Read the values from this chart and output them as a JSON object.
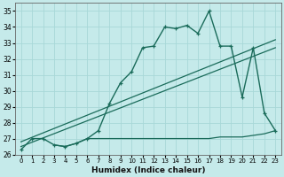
{
  "xlabel": "Humidex (Indice chaleur)",
  "bg_color": "#c5eaea",
  "grid_color": "#a8d8d8",
  "line_color": "#1a6b5a",
  "xlim": [
    -0.5,
    23.5
  ],
  "ylim": [
    26.0,
    35.5
  ],
  "yticks": [
    26,
    27,
    28,
    29,
    30,
    31,
    32,
    33,
    34,
    35
  ],
  "xticks": [
    0,
    1,
    2,
    3,
    4,
    5,
    6,
    7,
    8,
    9,
    10,
    11,
    12,
    13,
    14,
    15,
    16,
    17,
    18,
    19,
    20,
    21,
    22,
    23
  ],
  "curve_x": [
    0,
    1,
    2,
    3,
    4,
    5,
    6,
    7,
    8,
    9,
    10,
    11,
    12,
    13,
    14,
    15,
    16,
    17,
    18,
    19,
    20,
    21,
    22,
    23
  ],
  "curve_y": [
    26.3,
    27.0,
    27.0,
    26.6,
    26.5,
    26.7,
    27.0,
    27.5,
    29.2,
    30.5,
    31.2,
    32.7,
    32.8,
    34.0,
    33.9,
    34.1,
    33.6,
    35.0,
    32.8,
    32.8,
    29.6,
    32.7,
    28.6,
    27.5
  ],
  "trend1_x": [
    0,
    23
  ],
  "trend1_y": [
    26.5,
    32.7
  ],
  "trend2_x": [
    0,
    23
  ],
  "trend2_y": [
    26.8,
    33.2
  ],
  "flat_x": [
    3,
    4,
    5,
    6,
    7,
    8,
    9,
    10,
    11,
    12,
    13,
    14,
    15,
    16,
    17,
    18,
    19,
    20,
    21,
    22,
    23
  ],
  "flat_y": [
    26.6,
    26.5,
    26.7,
    27.0,
    27.0,
    27.0,
    27.0,
    27.0,
    27.0,
    27.0,
    27.0,
    27.0,
    27.0,
    27.0,
    27.0,
    27.1,
    27.1,
    27.1,
    27.2,
    27.3,
    27.5
  ]
}
